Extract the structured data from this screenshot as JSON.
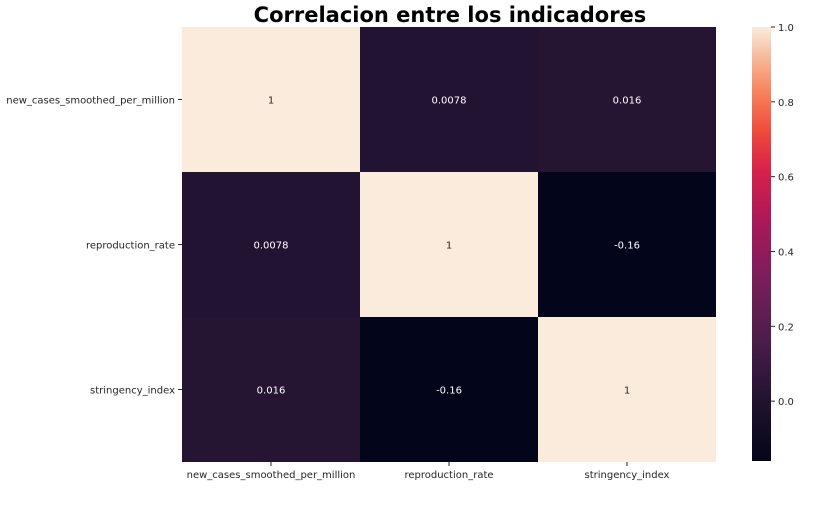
{
  "chart_data": {
    "type": "heatmap",
    "title": "Correlacion entre los indicadores",
    "rows": [
      "new_cases_smoothed_per_million",
      "reproduction_rate",
      "stringency_index"
    ],
    "columns": [
      "new_cases_smoothed_per_million",
      "reproduction_rate",
      "stringency_index"
    ],
    "values": [
      [
        1,
        0.0078,
        0.016
      ],
      [
        0.0078,
        1,
        -0.16
      ],
      [
        0.016,
        -0.16,
        1
      ]
    ],
    "value_labels": [
      [
        "1",
        "0.0078",
        "0.016"
      ],
      [
        "0.0078",
        "1",
        "-0.16"
      ],
      [
        "0.016",
        "-0.16",
        "1"
      ]
    ],
    "colorbar": {
      "colormap": "rocket",
      "vmin": -0.16,
      "vmax": 1.0,
      "ticks": [
        0.0,
        0.2,
        0.4,
        0.6,
        0.8,
        1.0
      ],
      "tick_labels": [
        "0.0",
        "0.2",
        "0.4",
        "0.6",
        "0.8",
        "1.0"
      ],
      "placement": "right"
    },
    "grid": false
  }
}
